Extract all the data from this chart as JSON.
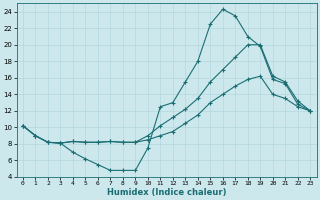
{
  "bg_color": "#cce8ed",
  "grid_color": "#aed4da",
  "line_color": "#1a6e72",
  "marker": "+",
  "markersize": 3.5,
  "linewidth": 0.8,
  "xlabel": "Humidex (Indice chaleur)",
  "xlim": [
    -0.5,
    23.5
  ],
  "ylim": [
    4,
    25
  ],
  "yticks": [
    4,
    6,
    8,
    10,
    12,
    14,
    16,
    18,
    20,
    22,
    24
  ],
  "xtick_labels": [
    "0",
    "1",
    "2",
    "3",
    "4",
    "5",
    "6",
    "7",
    "8",
    "9",
    "10",
    "11",
    "12",
    "13",
    "14",
    "15",
    "16",
    "17",
    "18",
    "19",
    "20",
    "21",
    "22",
    "23"
  ],
  "curve1_x": [
    0,
    1,
    2,
    3,
    4,
    5,
    6,
    7,
    8,
    9,
    10,
    11,
    12,
    13,
    14,
    15,
    16,
    17,
    18,
    19,
    20,
    21,
    22,
    23
  ],
  "curve1_y": [
    10.2,
    9.0,
    8.2,
    8.1,
    7.0,
    6.2,
    5.5,
    4.8,
    4.8,
    4.8,
    7.5,
    12.5,
    13.0,
    15.5,
    18.0,
    22.5,
    24.3,
    23.5,
    21.0,
    19.8,
    15.8,
    15.3,
    12.8,
    12.0
  ],
  "curve2_x": [
    0,
    1,
    2,
    3,
    4,
    5,
    6,
    7,
    8,
    9,
    10,
    11,
    12,
    13,
    14,
    15,
    16,
    17,
    18,
    19,
    20,
    21,
    22,
    23
  ],
  "curve2_y": [
    10.2,
    9.0,
    8.2,
    8.1,
    8.3,
    8.2,
    8.2,
    8.3,
    8.2,
    8.2,
    9.0,
    10.2,
    11.2,
    12.2,
    13.5,
    15.5,
    17.0,
    18.5,
    20.0,
    20.0,
    16.2,
    15.5,
    13.2,
    12.0
  ],
  "curve3_x": [
    0,
    1,
    2,
    3,
    4,
    5,
    6,
    7,
    8,
    9,
    10,
    11,
    12,
    13,
    14,
    15,
    16,
    17,
    18,
    19,
    20,
    21,
    22,
    23
  ],
  "curve3_y": [
    10.2,
    9.0,
    8.2,
    8.1,
    8.3,
    8.2,
    8.2,
    8.3,
    8.2,
    8.2,
    8.5,
    9.0,
    9.5,
    10.5,
    11.5,
    13.0,
    14.0,
    15.0,
    15.8,
    16.2,
    14.0,
    13.5,
    12.5,
    12.0
  ],
  "markeredgewidth": 0.8,
  "spine_color": "#1a6e72",
  "xlabel_fontsize": 6,
  "tick_fontsize": 4.5,
  "ytick_fontsize": 5
}
